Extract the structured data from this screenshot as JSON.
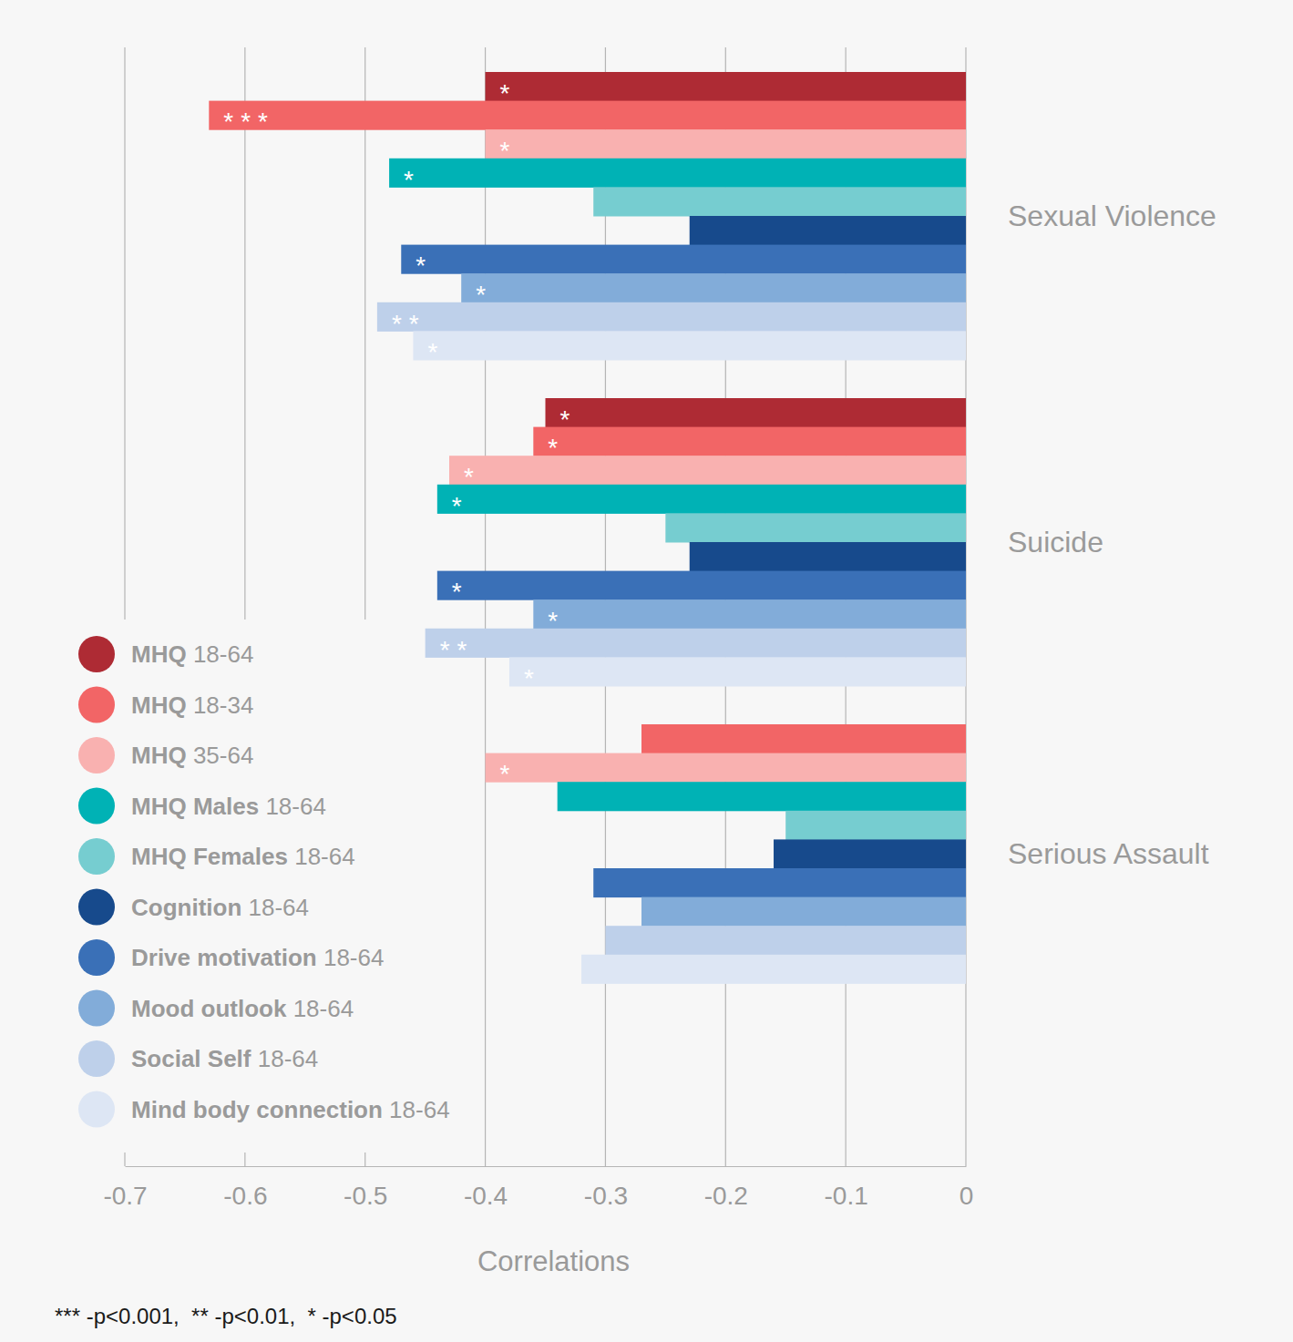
{
  "chart_data": {
    "type": "bar",
    "orientation": "horizontal",
    "categories": [
      "Sexual Violence",
      "Suicide",
      "Serious Assault"
    ],
    "series": [
      {
        "name": "MHQ 18-64",
        "color": "#ae2b34",
        "values": [
          -0.4,
          -0.35,
          null
        ],
        "significance": [
          "*",
          "*",
          null
        ]
      },
      {
        "name": "MHQ 18-34",
        "color": "#f26566",
        "values": [
          -0.63,
          -0.36,
          -0.27
        ],
        "significance": [
          "***",
          "*",
          null
        ]
      },
      {
        "name": "MHQ 35-64",
        "color": "#f9b1b0",
        "values": [
          -0.4,
          -0.43,
          -0.4
        ],
        "significance": [
          "*",
          "*",
          "*"
        ]
      },
      {
        "name": "MHQ Males 18-64",
        "color": "#00b2b5",
        "values": [
          -0.48,
          -0.44,
          -0.34
        ],
        "significance": [
          "*",
          "*",
          null
        ]
      },
      {
        "name": "MHQ Females 18-64",
        "color": "#76cdd0",
        "values": [
          -0.31,
          -0.25,
          -0.15
        ],
        "significance": [
          null,
          null,
          null
        ]
      },
      {
        "name": "Cognition 18-64",
        "color": "#174a8c",
        "values": [
          -0.23,
          -0.23,
          -0.16
        ],
        "significance": [
          null,
          null,
          null
        ]
      },
      {
        "name": "Drive motivation 18-64",
        "color": "#3a70b7",
        "values": [
          -0.47,
          -0.44,
          -0.31
        ],
        "significance": [
          "*",
          "*",
          null
        ]
      },
      {
        "name": "Mood outlook 18-64",
        "color": "#82acd9",
        "values": [
          -0.42,
          -0.36,
          -0.27
        ],
        "significance": [
          "*",
          "*",
          null
        ]
      },
      {
        "name": "Social Self 18-64",
        "color": "#bed0ea",
        "values": [
          -0.49,
          -0.45,
          -0.3
        ],
        "significance": [
          "**",
          "**",
          null
        ]
      },
      {
        "name": "Mind body connection 18-64",
        "color": "#dde6f4",
        "values": [
          -0.46,
          -0.38,
          -0.32
        ],
        "significance": [
          "*",
          "*",
          null
        ]
      }
    ],
    "x_label": "Correlations",
    "xlim": [
      -0.7,
      0
    ],
    "xticks": [
      -0.7,
      -0.6,
      -0.5,
      -0.4,
      -0.3,
      -0.2,
      -0.1,
      0
    ],
    "grid": true,
    "legend": "lower left",
    "note": "*** -p<0.001,  ** -p<0.01,  * -p<0.05"
  }
}
